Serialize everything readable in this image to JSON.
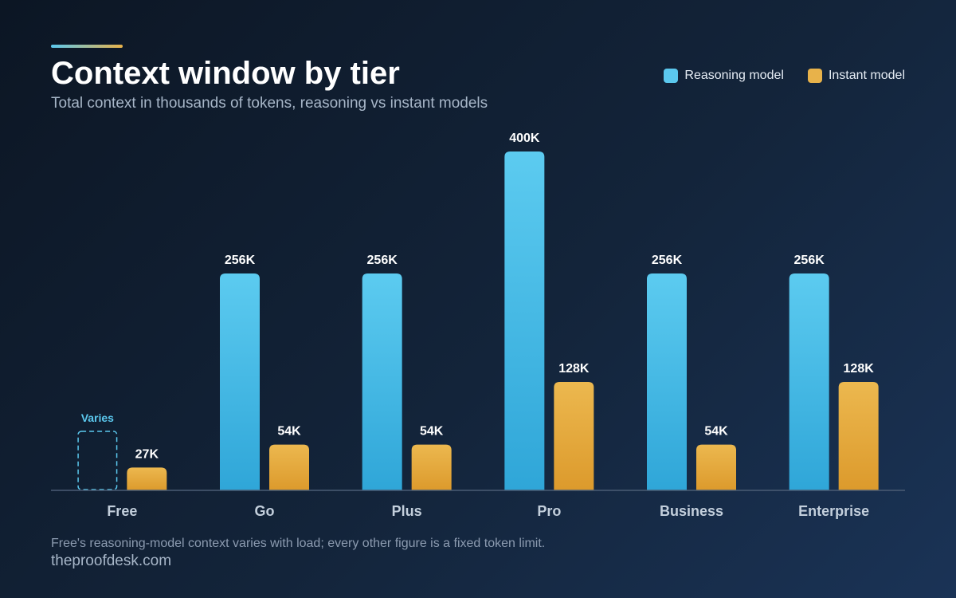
{
  "header": {
    "title": "Context window by tier",
    "subtitle": "Total context in thousands of tokens, reasoning vs instant models"
  },
  "legend": {
    "items": [
      {
        "label": "Reasoning model",
        "color": "#5bc8ee"
      },
      {
        "label": "Instant model",
        "color": "#e8b24a"
      }
    ]
  },
  "chart_data": {
    "type": "bar",
    "categories": [
      "Free",
      "Go",
      "Plus",
      "Pro",
      "Business",
      "Enterprise"
    ],
    "series": [
      {
        "name": "Reasoning model",
        "color": "#5bc8ee",
        "values": [
          null,
          256,
          256,
          400,
          256,
          256
        ],
        "labels": [
          "Varies",
          "256K",
          "256K",
          "400K",
          "256K",
          "256K"
        ]
      },
      {
        "name": "Instant model",
        "color": "#e8b24a",
        "values": [
          27,
          54,
          54,
          128,
          54,
          128
        ],
        "labels": [
          "27K",
          "54K",
          "54K",
          "128K",
          "54K",
          "128K"
        ]
      }
    ],
    "ylim": [
      0,
      400
    ],
    "grid": false,
    "legend_position": "top-right"
  },
  "footer": {
    "note": "Free's reasoning-model context varies with load; every other figure is a fixed token limit.",
    "source": "theproofdesk.com"
  }
}
